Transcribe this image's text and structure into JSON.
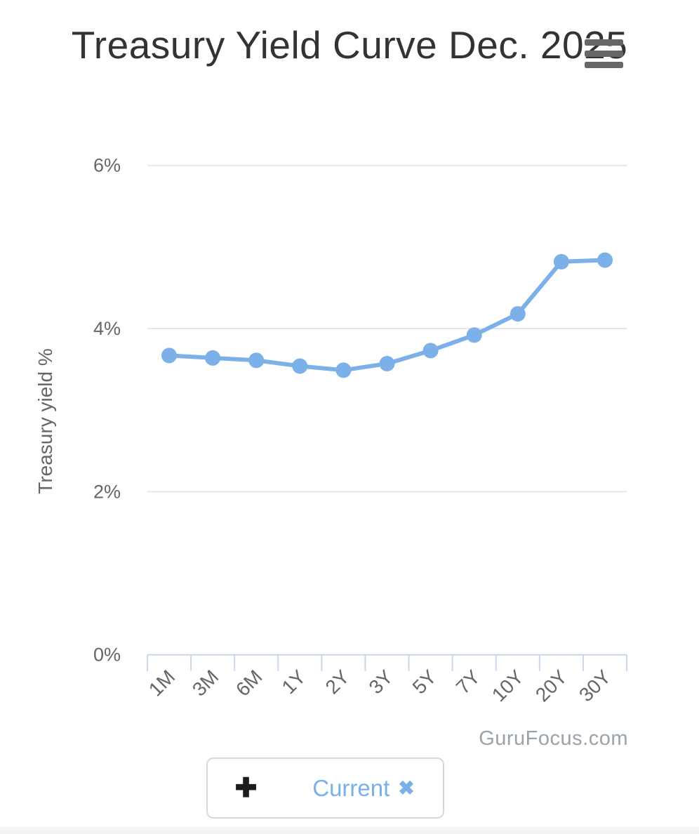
{
  "chart_data": {
    "type": "line",
    "title": "Treasury Yield Curve Dec. 2025",
    "categories": [
      "1M",
      "3M",
      "6M",
      "1Y",
      "2Y",
      "3Y",
      "5Y",
      "7Y",
      "10Y",
      "20Y",
      "30Y"
    ],
    "series": [
      {
        "name": "Current",
        "color": "#7cb0e8",
        "values": [
          3.67,
          3.64,
          3.61,
          3.54,
          3.49,
          3.57,
          3.73,
          3.92,
          4.18,
          4.82,
          4.84
        ]
      }
    ],
    "xlabel": "",
    "ylabel": "Treasury yield %",
    "ylim": [
      0,
      6
    ],
    "yticks": [
      {
        "value": 0,
        "label": "0%"
      },
      {
        "value": 2,
        "label": "2%"
      },
      {
        "value": 4,
        "label": "4%"
      },
      {
        "value": 6,
        "label": "6%"
      }
    ],
    "grid": true,
    "legend_position": "bottom",
    "watermark": "GuruFocus.com"
  },
  "header": {
    "menu_icon": "hamburger-menu"
  },
  "legend": {
    "add_label": "+",
    "add_glyph": "✚",
    "series_label": "Current",
    "remove_glyph": "✖"
  },
  "colors": {
    "series_blue": "#7cb0e8",
    "grid_line": "#e6e6e6",
    "axis_line": "#ccd6eb",
    "axis_label": "#666666",
    "title_text": "#333333",
    "watermark_text": "#9aa2ab",
    "legend_border": "#d8d8d8",
    "plus_black": "#1c1c1c"
  }
}
